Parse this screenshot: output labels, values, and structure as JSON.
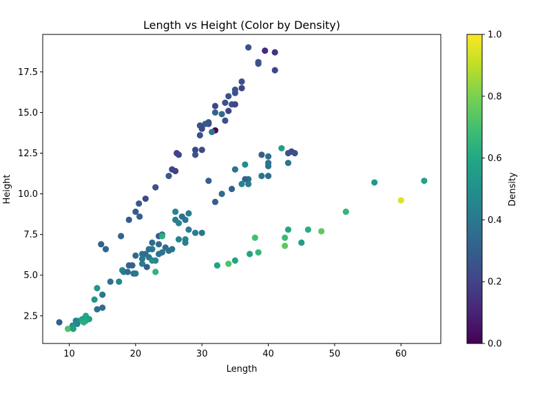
{
  "chart_data": {
    "type": "scatter",
    "title": "Length vs Height (Color by Density)",
    "xlabel": "Length",
    "ylabel": "Height",
    "xlim": [
      6,
      66
    ],
    "ylim": [
      0.8,
      19.8
    ],
    "x_ticks": [
      10,
      20,
      30,
      40,
      50,
      60
    ],
    "y_ticks": [
      2.5,
      5.0,
      7.5,
      10.0,
      12.5,
      15.0,
      17.5
    ],
    "x_tick_labels": [
      "10",
      "20",
      "30",
      "40",
      "50",
      "60"
    ],
    "y_tick_labels": [
      "2.5",
      "5.0",
      "7.5",
      "10.0",
      "12.5",
      "15.0",
      "17.5"
    ],
    "grid": false,
    "colorbar": {
      "label": "Density",
      "range": [
        0.0,
        1.0
      ],
      "colormap": "viridis",
      "ticks": [
        0.0,
        0.2,
        0.4,
        0.6,
        0.8,
        1.0
      ],
      "tick_labels": [
        "0.0",
        "0.2",
        "0.4",
        "0.6",
        "0.8",
        "1.0"
      ]
    },
    "points": [
      [
        37,
        19.0,
        0.25
      ],
      [
        39.5,
        18.8,
        0.12
      ],
      [
        41,
        18.7,
        0.15
      ],
      [
        38.5,
        18.1,
        0.25
      ],
      [
        38.5,
        18.0,
        0.25
      ],
      [
        41,
        17.6,
        0.2
      ],
      [
        36,
        16.9,
        0.25
      ],
      [
        36,
        16.5,
        0.2
      ],
      [
        35,
        16.4,
        0.25
      ],
      [
        35,
        16.2,
        0.25
      ],
      [
        34,
        16.0,
        0.25
      ],
      [
        33.5,
        15.6,
        0.25
      ],
      [
        34.5,
        15.5,
        0.25
      ],
      [
        35,
        15.5,
        0.2
      ],
      [
        32,
        15.4,
        0.22
      ],
      [
        34,
        15.1,
        0.2
      ],
      [
        32,
        15.0,
        0.32
      ],
      [
        33,
        14.9,
        0.35
      ],
      [
        33.5,
        14.5,
        0.25
      ],
      [
        31,
        14.4,
        0.25
      ],
      [
        31,
        14.3,
        0.25
      ],
      [
        30.5,
        14.3,
        0.28
      ],
      [
        29.7,
        14.2,
        0.25
      ],
      [
        30,
        14.0,
        0.22
      ],
      [
        32,
        13.9,
        0.02
      ],
      [
        31.5,
        13.8,
        0.38
      ],
      [
        29.7,
        13.6,
        0.25
      ],
      [
        29,
        12.7,
        0.22
      ],
      [
        30,
        12.7,
        0.22
      ],
      [
        29,
        12.4,
        0.25
      ],
      [
        26.2,
        12.5,
        0.2
      ],
      [
        26.5,
        12.4,
        0.2
      ],
      [
        42,
        12.8,
        0.55
      ],
      [
        43.5,
        12.6,
        0.22
      ],
      [
        44,
        12.5,
        0.25
      ],
      [
        43,
        12.5,
        0.25
      ],
      [
        39,
        12.4,
        0.3
      ],
      [
        40,
        12.3,
        0.35
      ],
      [
        43,
        11.9,
        0.4
      ],
      [
        40,
        11.9,
        0.38
      ],
      [
        40,
        11.7,
        0.38
      ],
      [
        36.5,
        11.8,
        0.48
      ],
      [
        35,
        11.5,
        0.38
      ],
      [
        25.5,
        11.5,
        0.2
      ],
      [
        26,
        11.4,
        0.2
      ],
      [
        25,
        11.1,
        0.28
      ],
      [
        39,
        11.1,
        0.38
      ],
      [
        40,
        11.1,
        0.35
      ],
      [
        37,
        10.9,
        0.38
      ],
      [
        36.5,
        10.9,
        0.32
      ],
      [
        36,
        10.6,
        0.45
      ],
      [
        37,
        10.6,
        0.42
      ],
      [
        31,
        10.8,
        0.3
      ],
      [
        23,
        10.4,
        0.25
      ],
      [
        34.5,
        10.3,
        0.3
      ],
      [
        33,
        10.0,
        0.35
      ],
      [
        56,
        10.7,
        0.52
      ],
      [
        63.5,
        10.8,
        0.58
      ],
      [
        60,
        9.6,
        0.95
      ],
      [
        21.5,
        9.7,
        0.22
      ],
      [
        32,
        9.5,
        0.3
      ],
      [
        20.5,
        9.4,
        0.28
      ],
      [
        20,
        8.9,
        0.28
      ],
      [
        51.7,
        8.9,
        0.65
      ],
      [
        26,
        8.9,
        0.45
      ],
      [
        28,
        8.8,
        0.42
      ],
      [
        20.6,
        8.6,
        0.3
      ],
      [
        27,
        8.6,
        0.35
      ],
      [
        19,
        8.4,
        0.28
      ],
      [
        27.5,
        8.4,
        0.38
      ],
      [
        26,
        8.4,
        0.42
      ],
      [
        26.5,
        8.2,
        0.45
      ],
      [
        28,
        7.8,
        0.42
      ],
      [
        29,
        7.6,
        0.42
      ],
      [
        30,
        7.6,
        0.4
      ],
      [
        43,
        7.8,
        0.6
      ],
      [
        46,
        7.8,
        0.62
      ],
      [
        48,
        7.7,
        0.75
      ],
      [
        24,
        7.5,
        0.35
      ],
      [
        23.5,
        7.4,
        0.28
      ],
      [
        17.8,
        7.4,
        0.32
      ],
      [
        24,
        7.4,
        0.62
      ],
      [
        38,
        7.3,
        0.7
      ],
      [
        42.5,
        7.3,
        0.68
      ],
      [
        27.5,
        7.2,
        0.45
      ],
      [
        26.5,
        7.2,
        0.45
      ],
      [
        27.5,
        7.0,
        0.42
      ],
      [
        22.5,
        7.0,
        0.35
      ],
      [
        23.5,
        6.9,
        0.35
      ],
      [
        14.8,
        6.9,
        0.3
      ],
      [
        45,
        7.0,
        0.55
      ],
      [
        42.5,
        6.8,
        0.75
      ],
      [
        24.5,
        6.7,
        0.35
      ],
      [
        22.5,
        6.6,
        0.4
      ],
      [
        22,
        6.6,
        0.38
      ],
      [
        15.5,
        6.6,
        0.32
      ],
      [
        25.5,
        6.6,
        0.38
      ],
      [
        25,
        6.5,
        0.38
      ],
      [
        24,
        6.4,
        0.38
      ],
      [
        38.5,
        6.4,
        0.65
      ],
      [
        37.2,
        6.3,
        0.58
      ],
      [
        23.5,
        6.3,
        0.38
      ],
      [
        21,
        6.3,
        0.38
      ],
      [
        21.5,
        6.3,
        0.35
      ],
      [
        20,
        6.2,
        0.35
      ],
      [
        22,
        6.1,
        0.38
      ],
      [
        21,
        6.0,
        0.4
      ],
      [
        23,
        5.9,
        0.45
      ],
      [
        35,
        5.9,
        0.58
      ],
      [
        22.5,
        5.9,
        0.48
      ],
      [
        21,
        5.7,
        0.42
      ],
      [
        34,
        5.7,
        0.72
      ],
      [
        19.5,
        5.6,
        0.32
      ],
      [
        19,
        5.6,
        0.32
      ],
      [
        32.3,
        5.6,
        0.58
      ],
      [
        21.7,
        5.5,
        0.3
      ],
      [
        18,
        5.3,
        0.45
      ],
      [
        18.2,
        5.2,
        0.42
      ],
      [
        18.8,
        5.2,
        0.35
      ],
      [
        23,
        5.2,
        0.65
      ],
      [
        19.7,
        5.1,
        0.35
      ],
      [
        20,
        5.1,
        0.4
      ],
      [
        16.2,
        4.6,
        0.38
      ],
      [
        17.5,
        4.6,
        0.45
      ],
      [
        14.2,
        4.2,
        0.52
      ],
      [
        15,
        3.8,
        0.4
      ],
      [
        13.8,
        3.5,
        0.52
      ],
      [
        15,
        3.0,
        0.35
      ],
      [
        14.2,
        2.9,
        0.35
      ],
      [
        12.5,
        2.5,
        0.6
      ],
      [
        13,
        2.3,
        0.55
      ],
      [
        12,
        2.3,
        0.55
      ],
      [
        11.5,
        2.2,
        0.6
      ],
      [
        11,
        2.2,
        0.45
      ],
      [
        8.5,
        2.1,
        0.3
      ],
      [
        12.5,
        2.2,
        0.6
      ],
      [
        12.2,
        2.1,
        0.62
      ],
      [
        11.2,
        2.0,
        0.45
      ],
      [
        10.5,
        1.9,
        0.5
      ],
      [
        9.8,
        1.7,
        0.72
      ],
      [
        10.6,
        1.7,
        0.55
      ]
    ]
  }
}
